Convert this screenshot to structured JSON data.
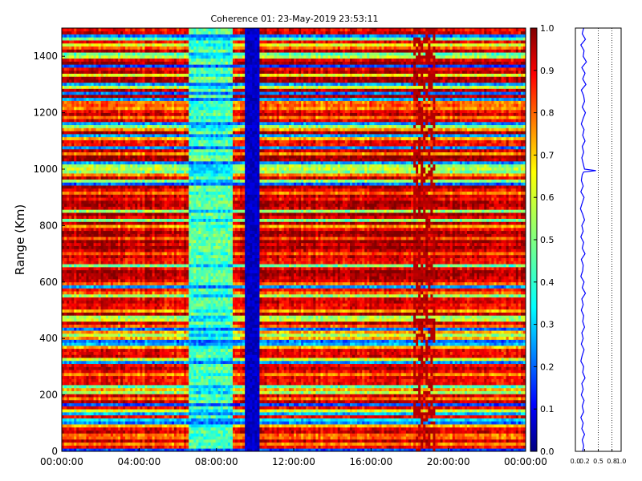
{
  "chart_data": [
    {
      "type": "heatmap",
      "title": "Coherence 01: 23-May-2019 23:53:11",
      "xlabel": "",
      "ylabel": "Range (Km)",
      "x_ticks": [
        "00:00:00",
        "04:00:00",
        "08:00:00",
        "12:00:00",
        "16:00:00",
        "20:00:00",
        "00:00:00"
      ],
      "x_range": [
        "00:00:00",
        "24:00:00"
      ],
      "y_ticks": [
        0,
        200,
        400,
        600,
        800,
        1000,
        1200,
        1400
      ],
      "ylim": [
        0,
        1500
      ],
      "colormap": "jet",
      "colorbar": {
        "range": [
          0.0,
          1.0
        ],
        "ticks": [
          "0.0",
          "0.1",
          "0.2",
          "0.3",
          "0.4",
          "0.5",
          "0.6",
          "0.7",
          "0.8",
          "0.9",
          "1.0"
        ]
      },
      "features": [
        {
          "x_start_hours": 6.6,
          "x_end_hours": 8.8,
          "level": "low-to-mid coherence band (0.1–0.5)"
        },
        {
          "x_start_hours": 9.5,
          "x_end_hours": 10.2,
          "level": "very low coherence band (~0.0–0.1)"
        },
        {
          "x_start_hours": 18.2,
          "x_end_hours": 19.3,
          "level": "high coherence vertical streaks (~0.9–1.0)"
        }
      ],
      "grid": false
    },
    {
      "type": "line",
      "title": "",
      "xlabel": "",
      "ylabel": "",
      "x_ticks": [
        "0.0",
        "0.2",
        "0.5",
        "0.8",
        "1.0"
      ],
      "xlim": [
        0,
        1
      ],
      "ylim": [
        0,
        1500
      ],
      "line_color": "#0000ff",
      "grid": true,
      "grid_style": "dotted vertical at 0.5, 0.8",
      "profile": [
        [
          1500,
          0.18
        ],
        [
          1480,
          0.15
        ],
        [
          1460,
          0.22
        ],
        [
          1440,
          0.12
        ],
        [
          1420,
          0.19
        ],
        [
          1400,
          0.17
        ],
        [
          1380,
          0.24
        ],
        [
          1360,
          0.14
        ],
        [
          1340,
          0.21
        ],
        [
          1320,
          0.16
        ],
        [
          1300,
          0.23
        ],
        [
          1280,
          0.13
        ],
        [
          1260,
          0.18
        ],
        [
          1240,
          0.2
        ],
        [
          1220,
          0.15
        ],
        [
          1200,
          0.22
        ],
        [
          1180,
          0.17
        ],
        [
          1160,
          0.13
        ],
        [
          1140,
          0.19
        ],
        [
          1120,
          0.16
        ],
        [
          1100,
          0.21
        ],
        [
          1080,
          0.15
        ],
        [
          1060,
          0.18
        ],
        [
          1040,
          0.14
        ],
        [
          1020,
          0.17
        ],
        [
          1000,
          0.2
        ],
        [
          995,
          0.45
        ],
        [
          990,
          0.18
        ],
        [
          980,
          0.15
        ],
        [
          960,
          0.13
        ],
        [
          940,
          0.17
        ],
        [
          920,
          0.12
        ],
        [
          900,
          0.19
        ],
        [
          880,
          0.15
        ],
        [
          860,
          0.11
        ],
        [
          840,
          0.16
        ],
        [
          820,
          0.2
        ],
        [
          800,
          0.14
        ],
        [
          780,
          0.17
        ],
        [
          760,
          0.12
        ],
        [
          740,
          0.18
        ],
        [
          720,
          0.15
        ],
        [
          700,
          0.21
        ],
        [
          680,
          0.13
        ],
        [
          660,
          0.17
        ],
        [
          640,
          0.16
        ],
        [
          620,
          0.12
        ],
        [
          600,
          0.19
        ],
        [
          580,
          0.15
        ],
        [
          560,
          0.22
        ],
        [
          540,
          0.14
        ],
        [
          520,
          0.17
        ],
        [
          500,
          0.13
        ],
        [
          480,
          0.18
        ],
        [
          460,
          0.16
        ],
        [
          440,
          0.2
        ],
        [
          420,
          0.14
        ],
        [
          400,
          0.17
        ],
        [
          380,
          0.13
        ],
        [
          360,
          0.19
        ],
        [
          340,
          0.15
        ],
        [
          320,
          0.12
        ],
        [
          300,
          0.18
        ],
        [
          280,
          0.16
        ],
        [
          260,
          0.21
        ],
        [
          240,
          0.14
        ],
        [
          220,
          0.17
        ],
        [
          200,
          0.13
        ],
        [
          180,
          0.19
        ],
        [
          160,
          0.15
        ],
        [
          140,
          0.18
        ],
        [
          120,
          0.12
        ],
        [
          100,
          0.17
        ],
        [
          80,
          0.14
        ],
        [
          60,
          0.2
        ],
        [
          40,
          0.15
        ],
        [
          20,
          0.18
        ],
        [
          0,
          0.16
        ]
      ]
    }
  ]
}
